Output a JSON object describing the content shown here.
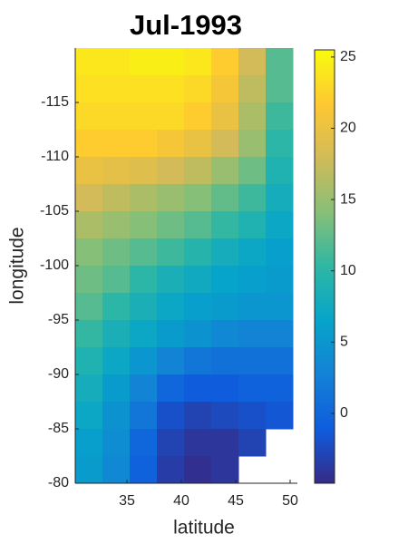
{
  "chart_data": {
    "type": "heatmap",
    "title": "Jul-1993",
    "x_label": "latitude",
    "y_label": "longitude",
    "x": [
      31.5,
      34,
      36.5,
      39,
      41.5,
      44,
      46.5,
      49
    ],
    "y": [
      -118.75,
      -116.25,
      -113.75,
      -111.25,
      -108.75,
      -106.25,
      -103.75,
      -101.25,
      -98.75,
      -96.25,
      -93.75,
      -91.25,
      -88.75,
      -86.25,
      -83.75,
      -81.25
    ],
    "z": [
      [
        24,
        24,
        24.5,
        24.5,
        24,
        22,
        18,
        12
      ],
      [
        23.5,
        23.5,
        23.5,
        23.5,
        23,
        21,
        17,
        12
      ],
      [
        23,
        23,
        23,
        23,
        22,
        20,
        16,
        11
      ],
      [
        22,
        22,
        22,
        21,
        20,
        18,
        15,
        10
      ],
      [
        20,
        19.5,
        19,
        18,
        17,
        15,
        13,
        9
      ],
      [
        18,
        17,
        16,
        15,
        14,
        12.5,
        11,
        8
      ],
      [
        16,
        15,
        14,
        13,
        12,
        10.5,
        9,
        7
      ],
      [
        14,
        13,
        12,
        11,
        9.5,
        8,
        7,
        6
      ],
      [
        13,
        12,
        10,
        8.5,
        7.5,
        6.5,
        6,
        5.5
      ],
      [
        12,
        10,
        8.5,
        7,
        6,
        5.5,
        5,
        5
      ],
      [
        10.5,
        8.5,
        7,
        5.5,
        4.5,
        3.5,
        3,
        3
      ],
      [
        9,
        7,
        5,
        3,
        1.5,
        1,
        1,
        1
      ],
      [
        8,
        5.5,
        3,
        0,
        -1,
        -1,
        -0.5,
        -0.5
      ],
      [
        7,
        4.5,
        1.5,
        -2,
        -3,
        -2.5,
        -2,
        -1.5
      ],
      [
        6,
        4,
        0,
        -3,
        -4,
        -4,
        -3,
        null
      ],
      [
        5.5,
        3.5,
        -0.5,
        -3.5,
        -4.5,
        -4,
        null,
        null
      ]
    ],
    "xlim": [
      30.25,
      50.25
    ],
    "xticks": [
      35,
      40,
      45,
      50
    ],
    "ylim": [
      -120,
      -80
    ],
    "yticks": [
      -115,
      -110,
      -105,
      -100,
      -95,
      -90,
      -85,
      -80
    ],
    "y_reversed": true,
    "clim": [
      -4.9,
      25.5
    ],
    "cticks": [
      0,
      5,
      10,
      15,
      20,
      25
    ],
    "colormap": [
      "#352a87",
      "#0f5cdd",
      "#1481d6",
      "#06a4ca",
      "#2eb7a4",
      "#87bf77",
      "#d1bb59",
      "#fec832",
      "#f9fb0e"
    ]
  }
}
